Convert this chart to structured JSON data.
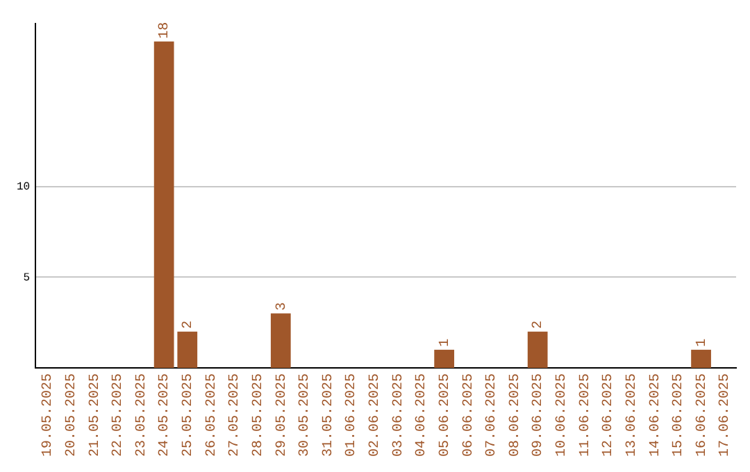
{
  "chart_data": {
    "type": "bar",
    "categories": [
      "19.05.2025",
      "20.05.2025",
      "21.05.2025",
      "22.05.2025",
      "23.05.2025",
      "24.05.2025",
      "25.05.2025",
      "26.05.2025",
      "27.05.2025",
      "28.05.2025",
      "29.05.2025",
      "30.05.2025",
      "31.05.2025",
      "01.06.2025",
      "02.06.2025",
      "03.06.2025",
      "04.06.2025",
      "05.06.2025",
      "06.06.2025",
      "07.06.2025",
      "08.06.2025",
      "09.06.2025",
      "10.06.2025",
      "11.06.2025",
      "12.06.2025",
      "13.06.2025",
      "14.06.2025",
      "15.06.2025",
      "16.06.2025",
      "17.06.2025"
    ],
    "values": [
      0,
      0,
      0,
      0,
      0,
      18,
      2,
      0,
      0,
      0,
      3,
      0,
      0,
      0,
      0,
      0,
      0,
      1,
      0,
      0,
      0,
      2,
      0,
      0,
      0,
      0,
      0,
      0,
      1,
      0
    ],
    "value_labels": [
      null,
      null,
      null,
      null,
      null,
      "18",
      "2",
      null,
      null,
      null,
      "3",
      null,
      null,
      null,
      null,
      null,
      null,
      "1",
      null,
      null,
      null,
      "2",
      null,
      null,
      null,
      null,
      null,
      null,
      "1",
      null
    ],
    "color": "#a0572a",
    "ylim": [
      0,
      19
    ],
    "yticks": [
      5,
      10
    ],
    "grid": "y"
  }
}
